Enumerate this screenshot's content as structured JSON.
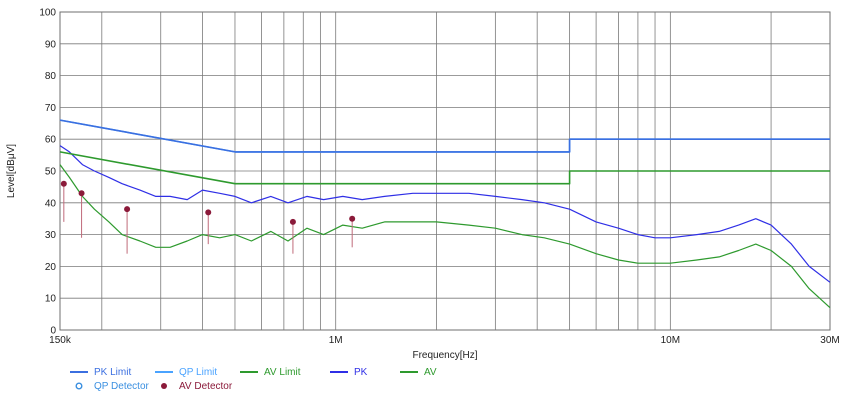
{
  "chart_data": {
    "type": "line",
    "title": "",
    "xlabel": "Frequency[Hz]",
    "ylabel": "Level[dBμV]",
    "x_scale": "log",
    "xlim": [
      150000,
      30000000
    ],
    "ylim": [
      0,
      100
    ],
    "grid": true,
    "y_ticks": [
      0,
      10,
      20,
      30,
      40,
      50,
      60,
      70,
      80,
      90,
      100
    ],
    "x_tick_labels": [
      {
        "value": 150000,
        "label": "150k"
      },
      {
        "value": 1000000,
        "label": "1M"
      },
      {
        "value": 10000000,
        "label": "10M"
      },
      {
        "value": 30000000,
        "label": "30M"
      }
    ],
    "legend_position": "bottom-left",
    "legend_rows": [
      [
        {
          "label": "PK Limit",
          "color": "#3b6fe0",
          "marker": "line"
        },
        {
          "label": "QP Limit",
          "color": "#4aa3ff",
          "marker": "line"
        },
        {
          "label": "AV Limit",
          "color": "#2e9a2e",
          "marker": "line"
        },
        {
          "label": "PK",
          "color": "#2f2fe6",
          "marker": "line"
        },
        {
          "label": "AV",
          "color": "#2e9a2e",
          "marker": "line"
        }
      ],
      [
        {
          "label": "QP Detector",
          "color": "#3a8fe0",
          "marker": "circle"
        },
        {
          "label": "AV Detector",
          "color": "#8b1a3a",
          "marker": "dot"
        }
      ]
    ],
    "series": [
      {
        "name": "PK Limit",
        "color": "#3b6fe0",
        "points": [
          [
            150000,
            66
          ],
          [
            500000,
            56
          ],
          [
            5000000,
            56
          ],
          [
            5000000,
            60
          ],
          [
            30000000,
            60
          ]
        ]
      },
      {
        "name": "QP Limit",
        "color": "#4aa3ff",
        "points": [
          [
            150000,
            66
          ],
          [
            500000,
            56
          ],
          [
            5000000,
            56
          ],
          [
            5000000,
            60
          ],
          [
            30000000,
            60
          ]
        ]
      },
      {
        "name": "AV Limit",
        "color": "#2e9a2e",
        "points": [
          [
            150000,
            56
          ],
          [
            500000,
            46
          ],
          [
            5000000,
            46
          ],
          [
            5000000,
            50
          ],
          [
            30000000,
            50
          ]
        ]
      },
      {
        "name": "PK",
        "color": "#2f2fe6",
        "points": [
          [
            150000,
            58
          ],
          [
            160000,
            56
          ],
          [
            175000,
            52
          ],
          [
            190000,
            50
          ],
          [
            210000,
            48
          ],
          [
            230000,
            46
          ],
          [
            260000,
            44
          ],
          [
            290000,
            42
          ],
          [
            320000,
            42
          ],
          [
            360000,
            41
          ],
          [
            400000,
            44
          ],
          [
            450000,
            43
          ],
          [
            500000,
            42
          ],
          [
            560000,
            40
          ],
          [
            640000,
            42
          ],
          [
            720000,
            40
          ],
          [
            820000,
            42
          ],
          [
            920000,
            41
          ],
          [
            1050000,
            42
          ],
          [
            1200000,
            41
          ],
          [
            1400000,
            42
          ],
          [
            1700000,
            43
          ],
          [
            2000000,
            43
          ],
          [
            2500000,
            43
          ],
          [
            3000000,
            42
          ],
          [
            3600000,
            41
          ],
          [
            4200000,
            40
          ],
          [
            5000000,
            38
          ],
          [
            6000000,
            34
          ],
          [
            7000000,
            32
          ],
          [
            8000000,
            30
          ],
          [
            9000000,
            29
          ],
          [
            10000000,
            29
          ],
          [
            12000000,
            30
          ],
          [
            14000000,
            31
          ],
          [
            16000000,
            33
          ],
          [
            18000000,
            35
          ],
          [
            20000000,
            33
          ],
          [
            23000000,
            27
          ],
          [
            26000000,
            20
          ],
          [
            30000000,
            15
          ]
        ]
      },
      {
        "name": "AV",
        "color": "#2e9a2e",
        "points": [
          [
            150000,
            52
          ],
          [
            160000,
            48
          ],
          [
            175000,
            42
          ],
          [
            190000,
            38
          ],
          [
            210000,
            34
          ],
          [
            230000,
            30
          ],
          [
            260000,
            28
          ],
          [
            290000,
            26
          ],
          [
            320000,
            26
          ],
          [
            360000,
            28
          ],
          [
            400000,
            30
          ],
          [
            450000,
            29
          ],
          [
            500000,
            30
          ],
          [
            560000,
            28
          ],
          [
            640000,
            31
          ],
          [
            720000,
            28
          ],
          [
            820000,
            32
          ],
          [
            920000,
            30
          ],
          [
            1050000,
            33
          ],
          [
            1200000,
            32
          ],
          [
            1400000,
            34
          ],
          [
            1700000,
            34
          ],
          [
            2000000,
            34
          ],
          [
            2500000,
            33
          ],
          [
            3000000,
            32
          ],
          [
            3600000,
            30
          ],
          [
            4200000,
            29
          ],
          [
            5000000,
            27
          ],
          [
            6000000,
            24
          ],
          [
            7000000,
            22
          ],
          [
            8000000,
            21
          ],
          [
            9000000,
            21
          ],
          [
            10000000,
            21
          ],
          [
            12000000,
            22
          ],
          [
            14000000,
            23
          ],
          [
            16000000,
            25
          ],
          [
            18000000,
            27
          ],
          [
            20000000,
            25
          ],
          [
            23000000,
            20
          ],
          [
            26000000,
            13
          ],
          [
            30000000,
            7
          ]
        ]
      }
    ],
    "detectors": {
      "av_points": [
        [
          154000,
          46
        ],
        [
          174000,
          43
        ],
        [
          238000,
          38
        ],
        [
          416000,
          37
        ],
        [
          745000,
          34
        ],
        [
          1120000,
          35
        ]
      ],
      "av_drops": [
        [
          154000,
          34
        ],
        [
          174000,
          29
        ],
        [
          238000,
          24
        ],
        [
          416000,
          27
        ],
        [
          745000,
          24
        ],
        [
          1120000,
          26
        ]
      ]
    }
  }
}
